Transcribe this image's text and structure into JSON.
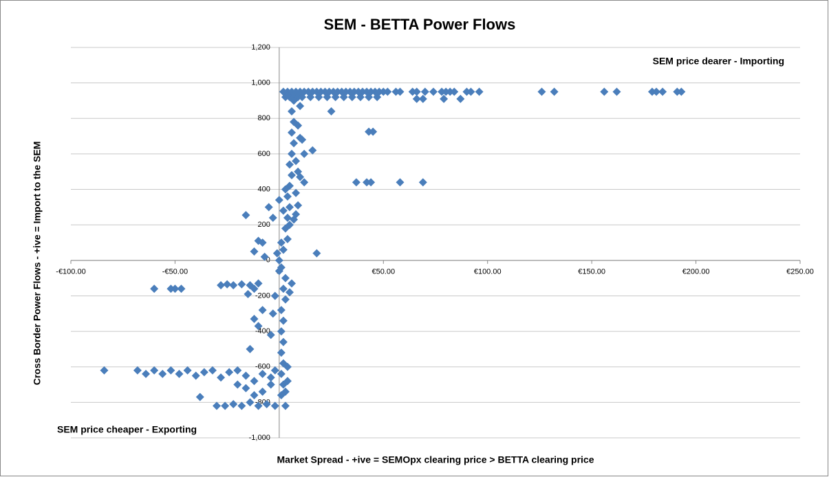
{
  "chart_data": {
    "type": "scatter",
    "title": "SEM - BETTA Power Flows",
    "x_label": "Market Spread - +ive = SEMOpx clearing price > BETTA clearing price",
    "y_label": "Cross Border Power Flows - +ive = Import to the SEM",
    "annotations": [
      "SEM price dearer - Importing",
      "SEM price cheaper - Exporting"
    ],
    "color": "#4a7ebb",
    "grid": true,
    "xlim": [
      -100,
      250
    ],
    "ylim": [
      -1000,
      1200
    ],
    "xticks": [
      {
        "value": -100,
        "label": "-€100.00"
      },
      {
        "value": -50,
        "label": "-€50.00"
      },
      {
        "value": 0,
        "label": "€-"
      },
      {
        "value": 50,
        "label": "€50.00"
      },
      {
        "value": 100,
        "label": "€100.00"
      },
      {
        "value": 150,
        "label": "€150.00"
      },
      {
        "value": 200,
        "label": "€200.00"
      },
      {
        "value": 250,
        "label": "€250.00"
      }
    ],
    "yticks": [
      {
        "value": -1000,
        "label": "-1,000"
      },
      -800,
      -600,
      -400,
      -200,
      0,
      200,
      400,
      600,
      800,
      {
        "value": 1000,
        "label": "1,000"
      },
      {
        "value": 1200,
        "label": "1,200"
      }
    ],
    "x": [
      2,
      4,
      6,
      8,
      10,
      12,
      14,
      16,
      18,
      20,
      22,
      24,
      26,
      28,
      30,
      32,
      34,
      36,
      38,
      40,
      42,
      44,
      46,
      48,
      50,
      52,
      56,
      58,
      64,
      66,
      70,
      74,
      78,
      80,
      82,
      84,
      90,
      92,
      96,
      126,
      132,
      156,
      162,
      179,
      181,
      184,
      191,
      193,
      3,
      5,
      7,
      9,
      11,
      15,
      19,
      23,
      27,
      31,
      35,
      39,
      43,
      47,
      25,
      66,
      69,
      79,
      87,
      43,
      45,
      37,
      42,
      44,
      58,
      69,
      18,
      16,
      12,
      10,
      11,
      9,
      10,
      12,
      9,
      8,
      7,
      1,
      2,
      1,
      2,
      1,
      2,
      1,
      2,
      1,
      3,
      2,
      3,
      1,
      0,
      2,
      4,
      3,
      4,
      5,
      4,
      5,
      6,
      5,
      6,
      7,
      6,
      7,
      6,
      7,
      4,
      3,
      3,
      4,
      4,
      5,
      6,
      0,
      -1,
      1,
      5,
      8,
      8,
      9,
      10,
      3,
      2,
      0,
      -2,
      -3,
      -4,
      -60,
      -52,
      -50,
      -47,
      -28,
      -25,
      -22,
      -18,
      -14,
      -12,
      -15,
      -10,
      -12,
      -14,
      -10,
      -8,
      -84,
      -68,
      -64,
      -60,
      -56,
      -52,
      -48,
      -44,
      -40,
      -36,
      -32,
      -28,
      -24,
      -20,
      -16,
      -12,
      -8,
      -4,
      -2,
      -38,
      -30,
      -26,
      -22,
      -18,
      -14,
      -10,
      -6,
      -2,
      -20,
      -16,
      -12,
      -8,
      -4,
      -16,
      -5,
      -8,
      -12,
      -3,
      -7,
      -10
    ],
    "values": [
      950,
      950,
      950,
      950,
      950,
      950,
      950,
      950,
      950,
      950,
      950,
      950,
      950,
      950,
      950,
      950,
      950,
      950,
      950,
      950,
      950,
      950,
      950,
      950,
      950,
      950,
      950,
      950,
      950,
      950,
      950,
      950,
      950,
      950,
      950,
      950,
      950,
      950,
      950,
      950,
      950,
      950,
      950,
      950,
      950,
      950,
      950,
      950,
      920,
      920,
      920,
      920,
      920,
      920,
      920,
      920,
      920,
      920,
      920,
      920,
      920,
      920,
      840,
      910,
      910,
      910,
      910,
      725,
      725,
      440,
      440,
      440,
      440,
      440,
      40,
      620,
      600,
      690,
      680,
      500,
      470,
      440,
      310,
      260,
      230,
      -760,
      -700,
      -640,
      -580,
      -520,
      -460,
      -400,
      -340,
      -280,
      -220,
      -160,
      -100,
      -40,
      0,
      60,
      120,
      180,
      240,
      300,
      360,
      420,
      480,
      540,
      600,
      660,
      720,
      780,
      840,
      900,
      930,
      -820,
      -740,
      -680,
      -600,
      -180,
      -130,
      -60,
      40,
      100,
      200,
      380,
      560,
      760,
      870,
      400,
      280,
      340,
      -200,
      -300,
      -420,
      -160,
      -160,
      -160,
      -160,
      -140,
      -135,
      -140,
      -135,
      -140,
      -160,
      -190,
      -130,
      -330,
      -500,
      -370,
      -280,
      -620,
      -620,
      -640,
      -620,
      -640,
      -620,
      -640,
      -620,
      -650,
      -630,
      -620,
      -660,
      -630,
      -620,
      -650,
      -680,
      -640,
      -700,
      -620,
      -770,
      -820,
      -820,
      -810,
      -820,
      -800,
      -820,
      -810,
      -820,
      -700,
      -720,
      -760,
      -740,
      -660,
      255,
      300,
      100,
      50,
      240,
      20,
      110
    ]
  }
}
